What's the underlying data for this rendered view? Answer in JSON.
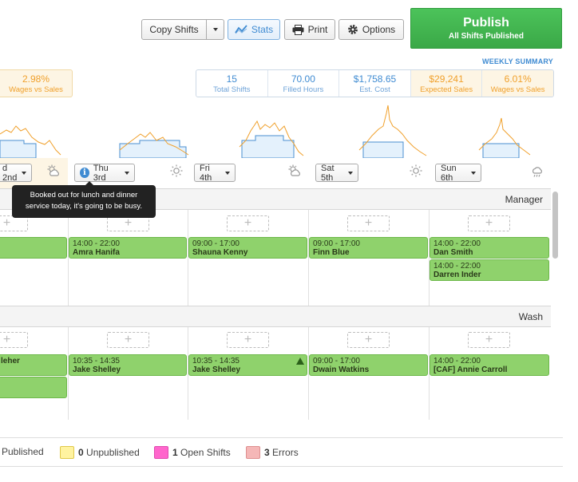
{
  "toolbar": {
    "copy_label": "Copy Shifts",
    "stats_label": "Stats",
    "print_label": "Print",
    "options_label": "Options"
  },
  "publish": {
    "title": "Publish",
    "subtitle": "All Shifts Published"
  },
  "summary": {
    "heading": "WEEKLY SUMMARY",
    "left_partial": {
      "value": "2.98%",
      "label": "Wages vs Sales"
    },
    "stats": [
      {
        "value": "15",
        "label": "Total Shifts"
      },
      {
        "value": "70.00",
        "label": "Filled Hours"
      },
      {
        "value": "$1,758.65",
        "label": "Est. Cost"
      },
      {
        "value": "$29,241",
        "label": "Expected Sales"
      },
      {
        "value": "6.01%",
        "label": "Wages vs Sales"
      }
    ]
  },
  "days": [
    {
      "label": "d 2nd",
      "weather": "partly-cloudy-icon"
    },
    {
      "label": "Thu 3rd",
      "weather": "sun-icon"
    },
    {
      "label": "Fri 4th",
      "weather": "partly-cloudy-icon"
    },
    {
      "label": "Sat 5th",
      "weather": "sun-icon"
    },
    {
      "label": "Sun 6th",
      "weather": "rain-cloud-icon"
    }
  ],
  "tooltip": {
    "line1": "Booked out for lunch and dinner",
    "line2": "service today, it's going to be busy."
  },
  "sections": {
    "manager": "Manager",
    "wash": "Wash"
  },
  "shifts": {
    "m_thu": {
      "time": "14:00 - 22:00",
      "name": "Amra Hanifa"
    },
    "m_fri": {
      "time": "09:00 - 17:00",
      "name": "Shauna Kenny"
    },
    "m_sat": {
      "time": "09:00 - 17:00",
      "name": "Finn Blue"
    },
    "m_sun1": {
      "time": "14:00 - 22:00",
      "name": "Dan Smith"
    },
    "m_sun2": {
      "time": "14:00 - 22:00",
      "name": "Darren Inder"
    },
    "w_wed": {
      "time": "",
      "name": "leher"
    },
    "w_thu": {
      "time": "10:35 - 14:35",
      "name": "Jake Shelley"
    },
    "w_fri": {
      "time": "10:35 - 14:35",
      "name": "Jake Shelley"
    },
    "w_sat": {
      "time": "09:00 - 17:00",
      "name": "Dwain Watkins"
    },
    "w_sun": {
      "time": "14:00 - 22:00",
      "name": "[CAF] Annie Carroll"
    }
  },
  "legend": {
    "published_label": "Published",
    "unpublished_count": "0",
    "unpublished_label": "Unpublished",
    "open_count": "1",
    "open_label": "Open Shifts",
    "errors_count": "3",
    "errors_label": "Errors",
    "colors": {
      "unpublished": "#fff3a0",
      "open": "#ff66cc",
      "errors": "#f5b7b7"
    }
  }
}
